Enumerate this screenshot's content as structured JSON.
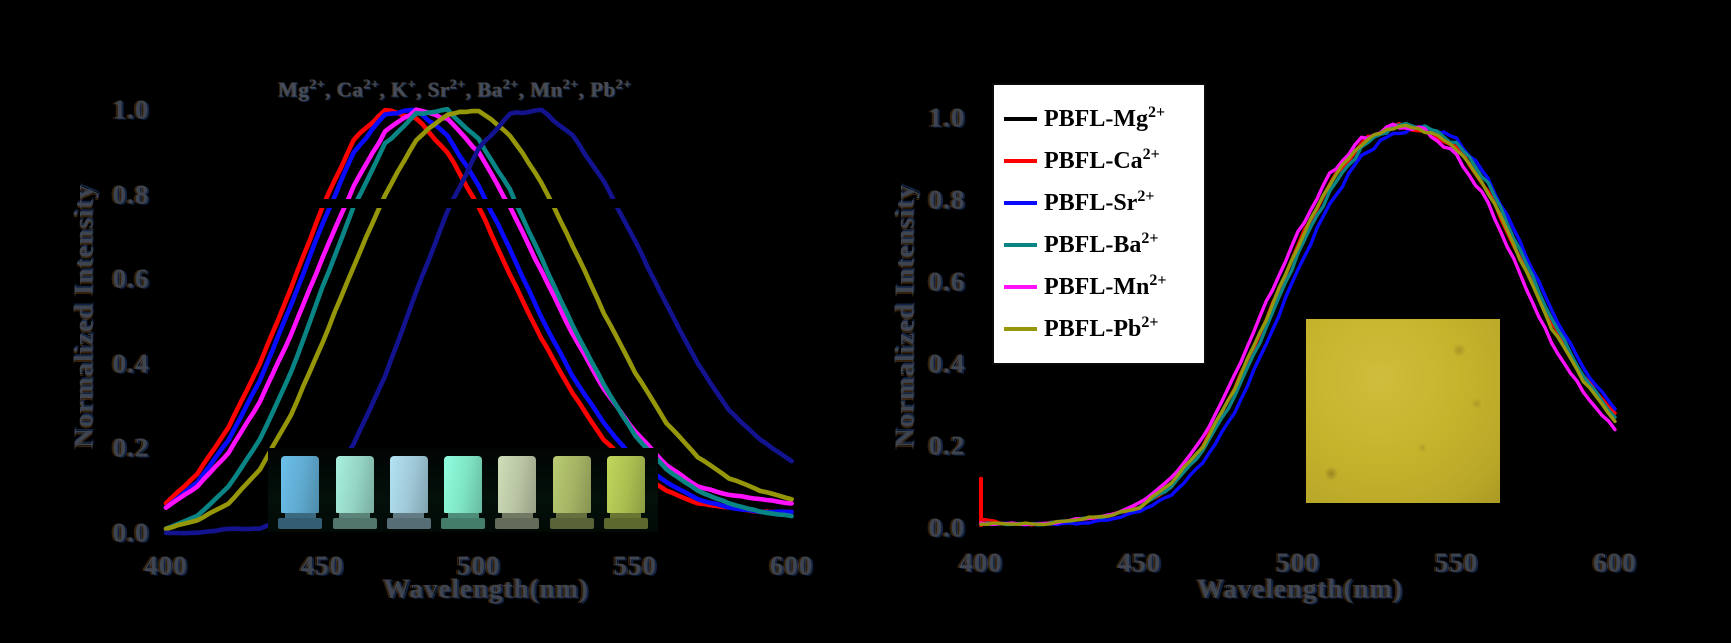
{
  "panels": [
    {
      "title_ions": [
        {
          "base": "Mg",
          "sup": "2+"
        },
        {
          "base": "Ca",
          "sup": "2+"
        },
        {
          "base": "K",
          "sup": "+"
        },
        {
          "base": "Sr",
          "sup": "2+"
        },
        {
          "base": "Ba",
          "sup": "2+"
        },
        {
          "base": "Mn",
          "sup": "2+"
        },
        {
          "base": "Pb",
          "sup": "2+"
        }
      ],
      "xlabel": "Wavelength(nm)",
      "ylabel": "Normalized Intensity",
      "x_tick_labels": [
        "400",
        "450",
        "500",
        "550",
        "600"
      ],
      "y_tick_labels": [
        "0.0",
        "0.2",
        "0.4",
        "0.6",
        "0.8",
        "1.0"
      ],
      "inset_vials": {
        "colors": [
          "#5fa9cf",
          "#93d3c3",
          "#9ec7d6",
          "#7ee3c3",
          "#b7c3a2",
          "#a3b364",
          "#a9bd50"
        ]
      },
      "occlusion_band": {
        "intensity_level": 0.78,
        "x_range_nm": [
          440,
          558
        ]
      }
    },
    {
      "xlabel": "Wavelength(nm)",
      "ylabel": "Normalized Intensity",
      "x_tick_labels": [
        "400",
        "450",
        "500",
        "550",
        "600"
      ],
      "y_tick_labels": [
        "0.0",
        "0.2",
        "0.4",
        "0.6",
        "0.8",
        "1.0"
      ],
      "legend": [
        {
          "base": "PBFL-Mg",
          "sup": "2+",
          "color": "#000000"
        },
        {
          "base": "PBFL-Ca",
          "sup": "2+",
          "color": "#ff0000"
        },
        {
          "base": "PBFL-Sr",
          "sup": "2+",
          "color": "#0a0aff"
        },
        {
          "base": "PBFL-Ba",
          "sup": "2+",
          "color": "#0a8585"
        },
        {
          "base": "PBFL-Mn",
          "sup": "2+",
          "color": "#ff10ff"
        },
        {
          "base": "PBFL-Pb",
          "sup": "2+",
          "color": "#96960a"
        }
      ],
      "inset_photo_color": "#c6b32c"
    }
  ],
  "chart_data": [
    {
      "type": "line",
      "title": "Mg2+, Ca2+, K+, Sr2+, Ba2+, Mn2+, Pb2+",
      "xlabel": "Wavelength(nm)",
      "ylabel": "Normalized Intensity",
      "xlim": [
        400,
        600
      ],
      "ylim": [
        0.0,
        1.0
      ],
      "x_ticks": [
        400,
        450,
        500,
        550,
        600
      ],
      "y_ticks": [
        0.0,
        0.2,
        0.4,
        0.6,
        0.8,
        1.0
      ],
      "grid": false,
      "legend_position": "none",
      "x_nm": [
        400,
        410,
        420,
        430,
        440,
        450,
        460,
        470,
        480,
        490,
        500,
        510,
        520,
        530,
        540,
        550,
        560,
        570,
        580,
        590,
        600
      ],
      "series": [
        {
          "name": "Mg2+",
          "color": "#000000",
          "peak_nm": 466,
          "values": [
            0.07,
            0.14,
            0.26,
            0.42,
            0.6,
            0.79,
            0.94,
            1.0,
            0.97,
            0.88,
            0.74,
            0.58,
            0.43,
            0.3,
            0.2,
            0.13,
            0.09,
            0.06,
            0.05,
            0.04,
            0.04
          ]
        },
        {
          "name": "Ca2+",
          "color": "#ff0000",
          "peak_nm": 468,
          "values": [
            0.07,
            0.14,
            0.25,
            0.4,
            0.58,
            0.77,
            0.93,
            1.0,
            0.98,
            0.9,
            0.77,
            0.61,
            0.46,
            0.33,
            0.22,
            0.15,
            0.1,
            0.07,
            0.06,
            0.05,
            0.05
          ]
        },
        {
          "name": "Sr2+",
          "color": "#0a0aff",
          "peak_nm": 474,
          "values": [
            0.06,
            0.12,
            0.22,
            0.36,
            0.54,
            0.73,
            0.9,
            0.99,
            1.0,
            0.94,
            0.82,
            0.67,
            0.51,
            0.37,
            0.26,
            0.17,
            0.12,
            0.08,
            0.06,
            0.05,
            0.05
          ]
        },
        {
          "name": "Mn2+",
          "color": "#ff10ff",
          "peak_nm": 483,
          "values": [
            0.06,
            0.11,
            0.19,
            0.31,
            0.47,
            0.65,
            0.82,
            0.95,
            1.0,
            0.98,
            0.9,
            0.77,
            0.62,
            0.47,
            0.34,
            0.24,
            0.16,
            0.11,
            0.09,
            0.08,
            0.07
          ]
        },
        {
          "name": "Ba2+",
          "color": "#0a8585",
          "peak_nm": 487,
          "values": [
            0.01,
            0.04,
            0.11,
            0.22,
            0.38,
            0.58,
            0.77,
            0.92,
            0.99,
            1.0,
            0.93,
            0.81,
            0.65,
            0.49,
            0.35,
            0.23,
            0.15,
            0.1,
            0.07,
            0.05,
            0.04
          ]
        },
        {
          "name": "Pb2+",
          "color": "#96960a",
          "peak_nm": 496,
          "values": [
            0.01,
            0.03,
            0.07,
            0.15,
            0.28,
            0.45,
            0.63,
            0.8,
            0.93,
            0.99,
            1.0,
            0.94,
            0.83,
            0.68,
            0.52,
            0.38,
            0.26,
            0.18,
            0.13,
            0.1,
            0.08
          ]
        },
        {
          "name": "K+",
          "color": "#13138f",
          "peak_nm": 514,
          "values": [
            0.0,
            0.0,
            0.01,
            0.01,
            0.04,
            0.1,
            0.21,
            0.37,
            0.57,
            0.76,
            0.91,
            0.99,
            1.0,
            0.94,
            0.83,
            0.69,
            0.54,
            0.4,
            0.29,
            0.22,
            0.17
          ]
        }
      ]
    },
    {
      "type": "line",
      "title": "",
      "xlabel": "Wavelength(nm)",
      "ylabel": "Normalized Intensity",
      "xlim": [
        400,
        600
      ],
      "ylim": [
        0.0,
        1.0
      ],
      "x_ticks": [
        400,
        450,
        500,
        550,
        600
      ],
      "y_ticks": [
        0.0,
        0.2,
        0.4,
        0.6,
        0.8,
        1.0
      ],
      "grid": false,
      "legend_position": "upper-left",
      "x_nm": [
        400,
        410,
        420,
        430,
        440,
        450,
        460,
        470,
        480,
        490,
        500,
        510,
        520,
        530,
        540,
        550,
        560,
        570,
        580,
        590,
        600
      ],
      "series": [
        {
          "name": "PBFL-Mg2+",
          "color": "#000000",
          "peak_nm": 538,
          "values": [
            0.01,
            0.01,
            0.01,
            0.02,
            0.03,
            0.05,
            0.1,
            0.19,
            0.33,
            0.5,
            0.68,
            0.83,
            0.93,
            0.97,
            0.98,
            0.94,
            0.83,
            0.67,
            0.5,
            0.36,
            0.27
          ]
        },
        {
          "name": "PBFL-Ca2+",
          "color": "#ff0000",
          "peak_nm": 538,
          "spike_at_400": 0.12,
          "values": [
            0.02,
            0.01,
            0.01,
            0.02,
            0.03,
            0.05,
            0.1,
            0.2,
            0.34,
            0.51,
            0.69,
            0.84,
            0.94,
            0.98,
            0.97,
            0.93,
            0.82,
            0.66,
            0.5,
            0.37,
            0.28
          ]
        },
        {
          "name": "PBFL-Sr2+",
          "color": "#0a0aff",
          "peak_nm": 540,
          "values": [
            0.01,
            0.01,
            0.01,
            0.01,
            0.02,
            0.04,
            0.08,
            0.16,
            0.28,
            0.45,
            0.63,
            0.79,
            0.91,
            0.96,
            0.98,
            0.95,
            0.85,
            0.7,
            0.53,
            0.39,
            0.29
          ]
        },
        {
          "name": "PBFL-Ba2+",
          "color": "#0a8585",
          "peak_nm": 538,
          "values": [
            0.01,
            0.01,
            0.01,
            0.02,
            0.03,
            0.05,
            0.1,
            0.19,
            0.32,
            0.49,
            0.67,
            0.82,
            0.93,
            0.98,
            0.98,
            0.94,
            0.84,
            0.68,
            0.51,
            0.37,
            0.27
          ]
        },
        {
          "name": "PBFL-Mn2+",
          "color": "#ff10ff",
          "peak_nm": 536,
          "values": [
            0.01,
            0.01,
            0.01,
            0.02,
            0.03,
            0.06,
            0.12,
            0.22,
            0.37,
            0.55,
            0.72,
            0.86,
            0.95,
            0.98,
            0.97,
            0.91,
            0.79,
            0.62,
            0.45,
            0.33,
            0.24
          ]
        },
        {
          "name": "PBFL-Pb2+",
          "color": "#96960a",
          "peak_nm": 538,
          "values": [
            0.01,
            0.01,
            0.01,
            0.02,
            0.03,
            0.05,
            0.11,
            0.2,
            0.34,
            0.51,
            0.69,
            0.84,
            0.94,
            0.98,
            0.97,
            0.93,
            0.82,
            0.66,
            0.49,
            0.36,
            0.26
          ]
        }
      ]
    }
  ]
}
